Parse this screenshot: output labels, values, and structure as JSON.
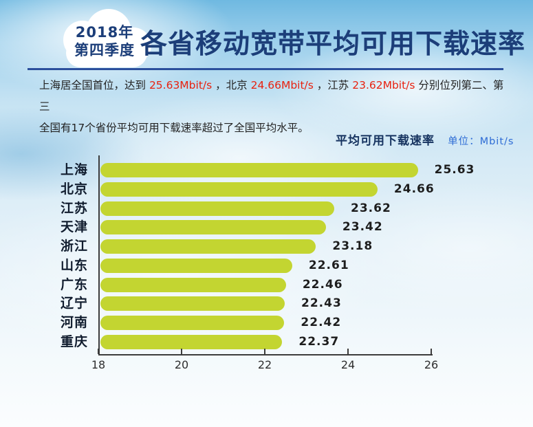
{
  "badge": {
    "line1": "2018年",
    "line2": "第四季度"
  },
  "header": {
    "title": "各省移动宽带平均可用下载速率"
  },
  "intro": {
    "line1_segments": [
      {
        "text": "上海居全国首位，达到 ",
        "highlight": false
      },
      {
        "text": "25.63Mbit/s",
        "highlight": true
      },
      {
        "text": " ，北京 ",
        "highlight": false
      },
      {
        "text": "24.66Mbit/s",
        "highlight": true
      },
      {
        "text": " ，江苏 ",
        "highlight": false
      },
      {
        "text": "23.62Mbit/s",
        "highlight": true
      },
      {
        "text": " 分别位列第二、第三",
        "highlight": false
      }
    ],
    "line2": "全国有17个省份平均可用下载速率超过了全国平均水平。"
  },
  "chart_header": {
    "title": "平均可用下载速率",
    "unit_label": "单位：Mbit/s"
  },
  "chart_data": {
    "type": "bar",
    "orientation": "horizontal",
    "title": "平均可用下载速率",
    "unit": "Mbit/s",
    "categories": [
      "上海",
      "北京",
      "江苏",
      "天津",
      "浙江",
      "山东",
      "广东",
      "辽宁",
      "河南",
      "重庆"
    ],
    "values": [
      25.63,
      24.66,
      23.62,
      23.42,
      23.18,
      22.61,
      22.46,
      22.43,
      22.42,
      22.37
    ],
    "value_labels": [
      "25.63",
      "24.66",
      "23.62",
      "23.42",
      "23.18",
      "22.61",
      "22.46",
      "22.43",
      "22.42",
      "22.37"
    ],
    "xlim": [
      18,
      26
    ],
    "xticks": [
      18,
      20,
      22,
      24,
      26
    ],
    "xtick_labels": [
      "18",
      "20",
      "22",
      "24",
      "26"
    ],
    "grid": false,
    "legend": false,
    "bar_color": "#c3d531"
  },
  "colors": {
    "title_navy": "#1c3e79",
    "divider_navy": "#2b4f9c",
    "highlight_red": "#e8210f",
    "unit_blue": "#2e6cd5",
    "bar_green": "#c3d531"
  }
}
